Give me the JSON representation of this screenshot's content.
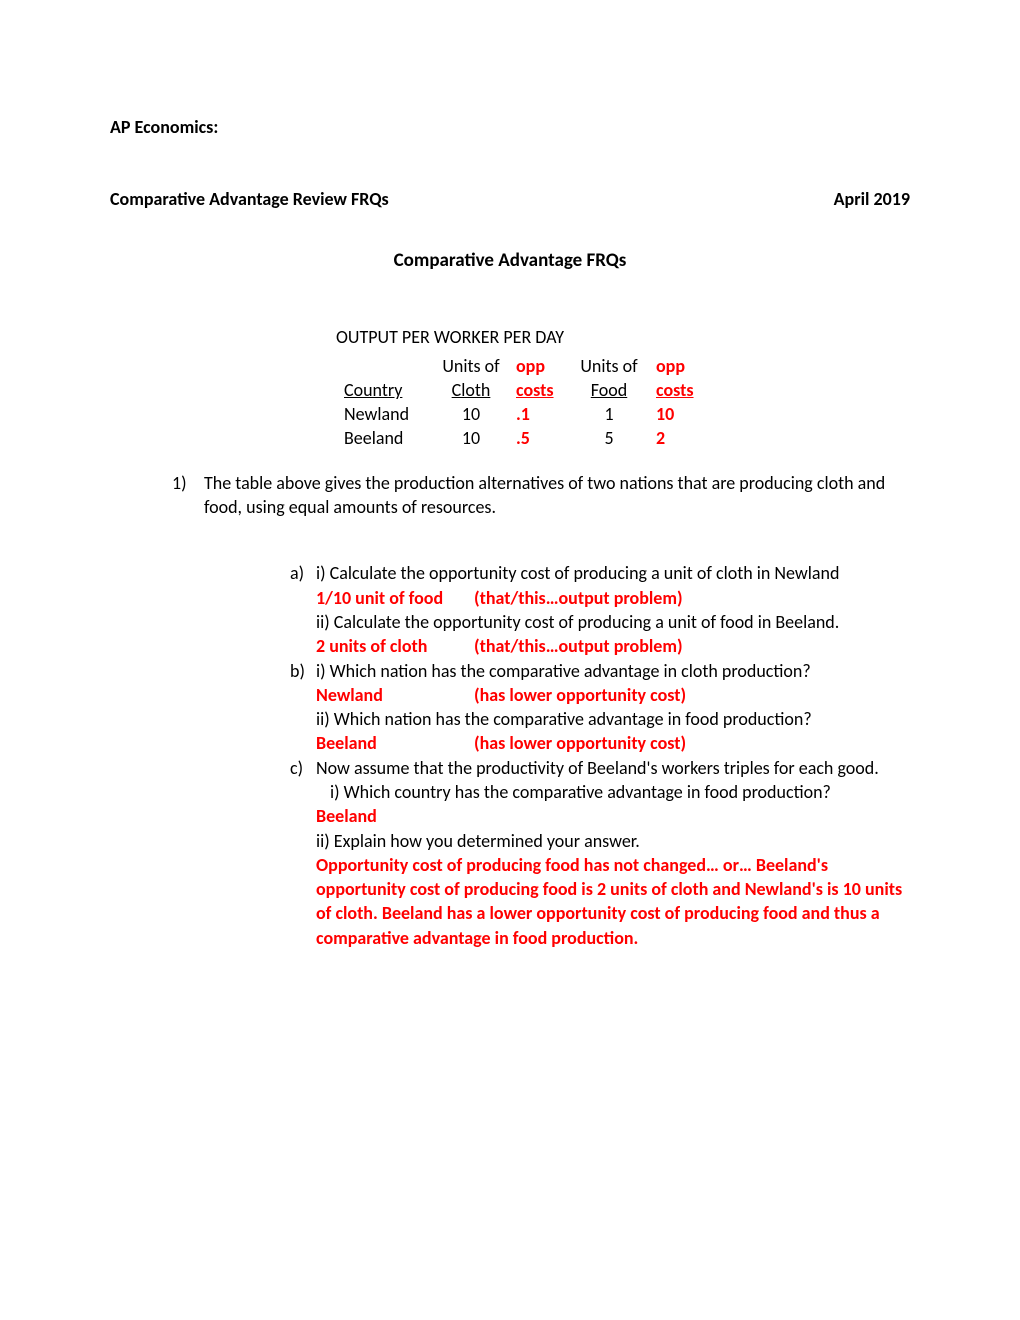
{
  "header": {
    "course": "AP Economics:",
    "subtitle": "Comparative Advantage Review FRQs",
    "date": "April 2019"
  },
  "main_title": "Comparative Advantage FRQs",
  "table": {
    "title": "OUTPUT PER WORKER PER DAY",
    "headers": {
      "country": "Country",
      "units_cloth": "Units of Cloth",
      "units_cloth_top": "Units of",
      "units_cloth_bot": "Cloth",
      "opp1_top": "opp",
      "opp1_bot": "costs",
      "units_food_top": "Units of",
      "units_food_bot": "Food",
      "opp2_top": "opp",
      "opp2_bot": "costs"
    },
    "rows": [
      {
        "country": "Newland",
        "cloth": "10",
        "opp1": ".1",
        "food": "1",
        "opp2": "10"
      },
      {
        "country": "Beeland",
        "cloth": "10",
        "opp1": ".5",
        "food": "5",
        "opp2": "2"
      }
    ]
  },
  "question": {
    "number": "1)",
    "intro": "The table above gives the production alternatives of two nations that are producing cloth and food, using equal amounts of resources.",
    "parts": {
      "a": {
        "letter": "a)",
        "i_text": "i) Calculate the opportunity cost of producing a unit of cloth in Newland",
        "i_answer": "1/10 unit of food",
        "i_note": "(that/this…output problem)",
        "ii_text": "ii)  Calculate the opportunity cost of producing a unit of food in Beeland.",
        "ii_answer": "2 units of cloth",
        "ii_note": "(that/this…output problem)"
      },
      "b": {
        "letter": "b)",
        "i_text": "i) Which nation has the comparative advantage in cloth production?",
        "i_answer": "Newland",
        "i_note": "(has lower opportunity cost)",
        "ii_text": "ii)  Which nation has the comparative advantage in food production?",
        "ii_answer": "Beeland",
        "ii_note": "(has lower opportunity cost)"
      },
      "c": {
        "letter": "c)",
        "intro": "Now assume that the productivity of Beeland's workers triples for each good.",
        "i_text": "i)  Which country has the comparative advantage in food production?",
        "i_answer": "Beeland",
        "ii_text": "ii)  Explain how you determined your answer.",
        "ii_answer": "Opportunity cost of producing food has not changed… or… Beeland's opportunity cost of producing food is 2 units of cloth and Newland's is 10 units of cloth.  Beeland has a lower opportunity cost of producing food and thus a comparative advantage in food production."
      }
    }
  }
}
